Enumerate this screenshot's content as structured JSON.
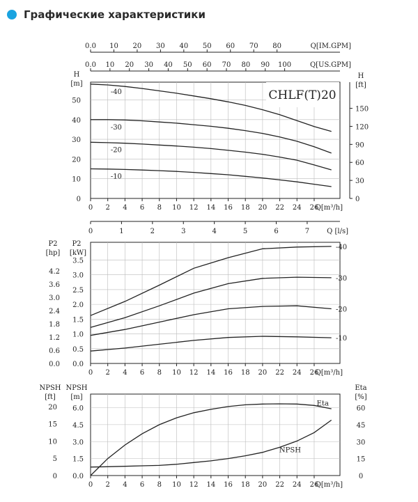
{
  "page": {
    "heading": "Графические характеристики",
    "accent_color": "#1aa3e0"
  },
  "chart_data": [
    {
      "type": "line",
      "model_label": "CHLF(T)20",
      "top_axes": [
        {
          "label": "Q[IM.GPM]",
          "ticks": [
            0.0,
            10,
            20,
            30,
            40,
            50,
            60,
            70,
            80
          ],
          "tick_labels": [
            "0.0",
            "10",
            "20",
            "30",
            "40",
            "50",
            "60",
            "70",
            "80"
          ],
          "range": [
            0,
            107
          ]
        },
        {
          "label": "Q[US.GPM]",
          "ticks": [
            0.0,
            10,
            20,
            30,
            40,
            50,
            60,
            70,
            80,
            90,
            100
          ],
          "tick_labels": [
            "0.0",
            "10",
            "20",
            "30",
            "40",
            "50",
            "60",
            "70",
            "80",
            "90",
            "100"
          ],
          "range": [
            0,
            128.5
          ]
        }
      ],
      "x": {
        "range": [
          0,
          29
        ],
        "ticks": [
          0,
          2,
          4,
          6,
          8,
          10,
          12,
          14,
          16,
          18,
          20,
          22,
          24,
          26
        ],
        "label": "Q[m³/h]"
      },
      "y_left": {
        "label": "H",
        "unit": "[m]",
        "range": [
          0,
          59
        ],
        "ticks": [
          0,
          10,
          20,
          30,
          40,
          50
        ]
      },
      "y_right": {
        "label": "H",
        "unit": "[ft]",
        "ticks": [
          0,
          30,
          60,
          90,
          120,
          150
        ]
      },
      "series": [
        {
          "name": "-40",
          "x": [
            0,
            2,
            4,
            6,
            8,
            10,
            12,
            14,
            16,
            18,
            20,
            22,
            24,
            26,
            28
          ],
          "y": [
            58,
            57.6,
            56.8,
            55.8,
            54.6,
            53.4,
            52,
            50.6,
            49,
            47.2,
            45,
            42.5,
            39.5,
            36.5,
            34
          ]
        },
        {
          "name": "-30",
          "x": [
            0,
            2,
            4,
            6,
            8,
            10,
            12,
            14,
            16,
            18,
            20,
            22,
            24,
            26,
            28
          ],
          "y": [
            40,
            40,
            39.8,
            39.4,
            38.8,
            38.2,
            37.4,
            36.6,
            35.6,
            34.4,
            33,
            31.2,
            29,
            26.2,
            23
          ]
        },
        {
          "name": "-20",
          "x": [
            0,
            2,
            4,
            6,
            8,
            10,
            12,
            14,
            16,
            18,
            20,
            22,
            24,
            26,
            28
          ],
          "y": [
            28.5,
            28.3,
            28,
            27.6,
            27.1,
            26.6,
            26,
            25.3,
            24.4,
            23.5,
            22.4,
            21,
            19.4,
            17,
            14.5
          ]
        },
        {
          "name": "-10",
          "x": [
            0,
            2,
            4,
            6,
            8,
            10,
            12,
            14,
            16,
            18,
            20,
            22,
            24,
            26,
            28
          ],
          "y": [
            15,
            14.9,
            14.7,
            14.4,
            14.1,
            13.7,
            13.2,
            12.6,
            12,
            11.2,
            10.4,
            9.4,
            8.4,
            7.2,
            6
          ]
        }
      ]
    },
    {
      "type": "axis",
      "x": {
        "label": "Q [l/s]",
        "range": [
          0,
          8.06
        ],
        "ticks": [
          0,
          1,
          2,
          3,
          4,
          5,
          6,
          7
        ],
        "tick_labels": [
          "0",
          "1",
          "2",
          "3",
          "4",
          "5",
          "6",
          "7"
        ]
      }
    },
    {
      "type": "line",
      "x": {
        "range": [
          0,
          29
        ],
        "ticks": [
          0,
          2,
          4,
          6,
          8,
          10,
          12,
          14,
          16,
          18,
          20,
          22,
          24,
          26
        ],
        "label": "Q[m³/h]"
      },
      "y_left_outer": {
        "label": "P2",
        "unit": "[hp]",
        "ticks": [
          0.0,
          0.6,
          1.2,
          1.8,
          2.4,
          3.0,
          3.6,
          4.2
        ],
        "tick_labels": [
          "0.0",
          "0.6",
          "1.2",
          "1.8",
          "2.4",
          "3.0",
          "3.6",
          "4.2"
        ]
      },
      "y_left": {
        "label": "P2",
        "unit": "[kW]",
        "range": [
          0,
          4.1
        ],
        "ticks": [
          0.0,
          0.5,
          1.0,
          1.5,
          2.0,
          2.5,
          3.0,
          3.5
        ],
        "tick_labels": [
          "0.0",
          "0.5",
          "1.0",
          "1.5",
          "2.0",
          "2.5",
          "3.0",
          "3.5"
        ]
      },
      "series": [
        {
          "name": "-40",
          "x": [
            0,
            4,
            8,
            12,
            16,
            20,
            24,
            28
          ],
          "y": [
            1.62,
            2.1,
            2.65,
            3.22,
            3.58,
            3.88,
            3.94,
            3.96
          ]
        },
        {
          "name": "-30",
          "x": [
            0,
            4,
            8,
            12,
            16,
            20,
            24,
            28
          ],
          "y": [
            1.22,
            1.55,
            1.95,
            2.38,
            2.7,
            2.88,
            2.92,
            2.9
          ]
        },
        {
          "name": "-20",
          "x": [
            0,
            4,
            8,
            12,
            16,
            20,
            24,
            28
          ],
          "y": [
            0.95,
            1.15,
            1.4,
            1.65,
            1.85,
            1.93,
            1.95,
            1.85
          ]
        },
        {
          "name": "-10",
          "x": [
            0,
            4,
            8,
            12,
            16,
            20,
            24,
            28
          ],
          "y": [
            0.42,
            0.52,
            0.65,
            0.78,
            0.88,
            0.92,
            0.9,
            0.87
          ]
        }
      ]
    },
    {
      "type": "line",
      "x": {
        "range": [
          0,
          29
        ],
        "ticks": [
          0,
          2,
          4,
          6,
          8,
          10,
          12,
          14,
          16,
          18,
          20,
          22,
          24,
          26
        ],
        "label": "Q[m³/h]"
      },
      "y_left_outer": {
        "label": "NPSH",
        "unit": "[ft]",
        "ticks": [
          0,
          5,
          10,
          15,
          20
        ],
        "tick_labels": [
          "0",
          "5",
          "10",
          "15",
          "20"
        ]
      },
      "y_left": {
        "label": "NPSH",
        "unit": "[m]",
        "range": [
          0,
          7.2
        ],
        "ticks": [
          0.0,
          1.5,
          3.0,
          4.5,
          6.0
        ],
        "tick_labels": [
          "0.0",
          "1.5",
          "3.0",
          "4.5",
          "6.0"
        ]
      },
      "y_right": {
        "label": "Eta",
        "unit": "[%]",
        "range": [
          0,
          72
        ],
        "ticks": [
          0,
          15,
          30,
          45,
          60
        ],
        "tick_labels": [
          "0",
          "15",
          "30",
          "45",
          "60"
        ]
      },
      "series": [
        {
          "name": "Eta",
          "axis": "right",
          "x": [
            0,
            2,
            4,
            6,
            8,
            10,
            12,
            14,
            16,
            18,
            20,
            22,
            24,
            26,
            28
          ],
          "y": [
            0,
            15,
            27,
            37,
            45,
            51,
            55.5,
            58.5,
            61,
            62.5,
            63.2,
            63.4,
            63.2,
            62,
            59
          ]
        },
        {
          "name": "NPSH",
          "axis": "left",
          "x": [
            0,
            2,
            4,
            6,
            8,
            10,
            12,
            14,
            16,
            18,
            20,
            22,
            24,
            26,
            28
          ],
          "y": [
            0.75,
            0.78,
            0.82,
            0.86,
            0.9,
            1.0,
            1.15,
            1.3,
            1.5,
            1.75,
            2.05,
            2.5,
            3.05,
            3.8,
            4.9
          ]
        }
      ]
    }
  ]
}
